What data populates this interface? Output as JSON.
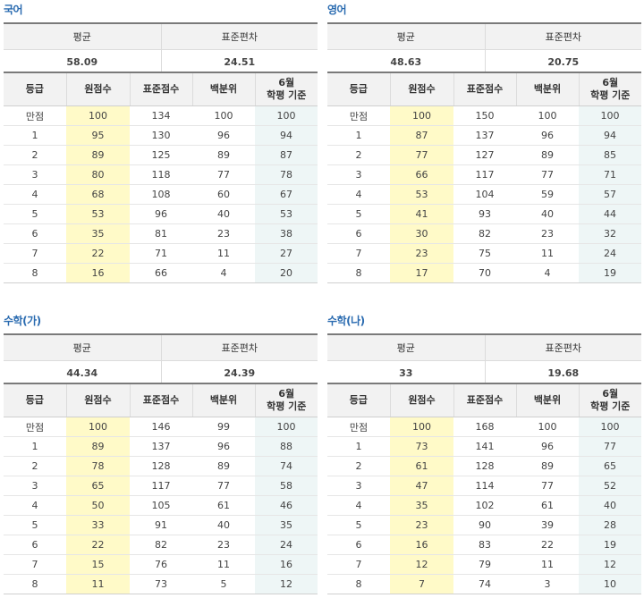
{
  "headers": {
    "mean": "평균",
    "sd": "표준편차",
    "grade": "등급",
    "raw": "원점수",
    "std": "표준점수",
    "pct": "백분위",
    "june_l1": "6월",
    "june_l2": "학평 기준"
  },
  "panels": [
    {
      "title": "국어",
      "mean": "58.09",
      "sd": "24.51",
      "rows": [
        [
          "만점",
          "100",
          "134",
          "100",
          "100"
        ],
        [
          "1",
          "95",
          "130",
          "96",
          "94"
        ],
        [
          "2",
          "89",
          "125",
          "89",
          "87"
        ],
        [
          "3",
          "80",
          "118",
          "77",
          "78"
        ],
        [
          "4",
          "68",
          "108",
          "60",
          "67"
        ],
        [
          "5",
          "53",
          "96",
          "40",
          "53"
        ],
        [
          "6",
          "35",
          "81",
          "23",
          "38"
        ],
        [
          "7",
          "22",
          "71",
          "11",
          "27"
        ],
        [
          "8",
          "16",
          "66",
          "4",
          "20"
        ]
      ]
    },
    {
      "title": "영어",
      "mean": "48.63",
      "sd": "20.75",
      "rows": [
        [
          "만점",
          "100",
          "150",
          "100",
          "100"
        ],
        [
          "1",
          "87",
          "137",
          "96",
          "94"
        ],
        [
          "2",
          "77",
          "127",
          "89",
          "85"
        ],
        [
          "3",
          "66",
          "117",
          "77",
          "71"
        ],
        [
          "4",
          "53",
          "104",
          "59",
          "57"
        ],
        [
          "5",
          "41",
          "93",
          "40",
          "44"
        ],
        [
          "6",
          "30",
          "82",
          "23",
          "32"
        ],
        [
          "7",
          "23",
          "75",
          "11",
          "24"
        ],
        [
          "8",
          "17",
          "70",
          "4",
          "19"
        ]
      ]
    },
    {
      "title": "수학(가)",
      "mean": "44.34",
      "sd": "24.39",
      "rows": [
        [
          "만점",
          "100",
          "146",
          "99",
          "100"
        ],
        [
          "1",
          "89",
          "137",
          "96",
          "88"
        ],
        [
          "2",
          "78",
          "128",
          "89",
          "74"
        ],
        [
          "3",
          "65",
          "117",
          "77",
          "58"
        ],
        [
          "4",
          "50",
          "105",
          "61",
          "46"
        ],
        [
          "5",
          "33",
          "91",
          "40",
          "35"
        ],
        [
          "6",
          "22",
          "82",
          "23",
          "24"
        ],
        [
          "7",
          "15",
          "76",
          "11",
          "16"
        ],
        [
          "8",
          "11",
          "73",
          "5",
          "12"
        ]
      ]
    },
    {
      "title": "수학(나)",
      "mean": "33",
      "sd": "19.68",
      "rows": [
        [
          "만점",
          "100",
          "168",
          "100",
          "100"
        ],
        [
          "1",
          "73",
          "141",
          "96",
          "77"
        ],
        [
          "2",
          "61",
          "128",
          "89",
          "65"
        ],
        [
          "3",
          "47",
          "114",
          "77",
          "52"
        ],
        [
          "4",
          "35",
          "102",
          "61",
          "40"
        ],
        [
          "5",
          "23",
          "90",
          "39",
          "28"
        ],
        [
          "6",
          "16",
          "83",
          "22",
          "19"
        ],
        [
          "7",
          "12",
          "79",
          "11",
          "12"
        ],
        [
          "8",
          "7",
          "74",
          "3",
          "10"
        ]
      ]
    }
  ]
}
